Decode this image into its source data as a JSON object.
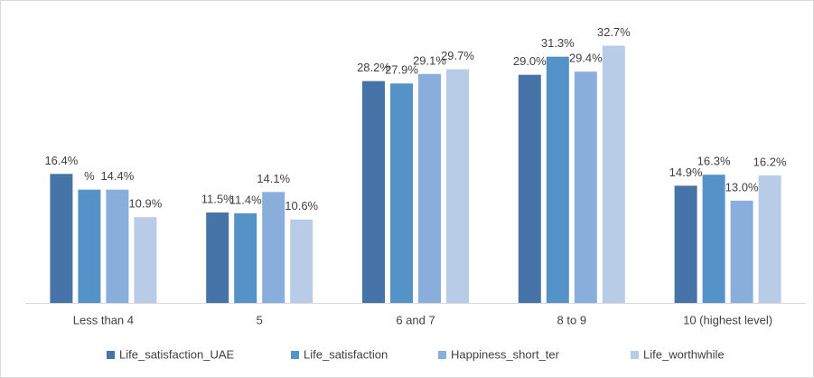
{
  "chart_data": {
    "type": "bar",
    "categories": [
      "Less than 4",
      "5",
      "6 and 7",
      "8 to 9",
      "10 (highest level)"
    ],
    "series": [
      {
        "name": "Life_satisfaction_UAE",
        "color": "#4674a8",
        "values": [
          16.4,
          11.5,
          28.2,
          29.0,
          14.9
        ],
        "value_labels": [
          "16.4%",
          "11.5%",
          "28.2%",
          "29.0%",
          "14.9%"
        ]
      },
      {
        "name": "Life_satisfaction",
        "color": "#5592c8",
        "values": [
          14.4,
          11.4,
          27.9,
          31.3,
          16.3
        ],
        "value_labels": [
          "%",
          "11.4%",
          "27.9%",
          "31.3%",
          "16.3%"
        ]
      },
      {
        "name": "Happiness_short_ter",
        "color": "#8aaedb",
        "values": [
          14.4,
          14.1,
          29.1,
          29.4,
          13.0
        ],
        "value_labels": [
          "14.4%",
          "14.1%",
          "29.1%",
          "29.4%",
          "13.0%"
        ]
      },
      {
        "name": "Life_worthwhile",
        "color": "#b8cce8",
        "values": [
          10.9,
          10.6,
          29.7,
          32.7,
          16.2
        ],
        "value_labels": [
          "10.9%",
          "10.6%",
          "29.7%",
          "32.7%",
          "16.2%"
        ]
      }
    ],
    "legend": "bottom"
  }
}
